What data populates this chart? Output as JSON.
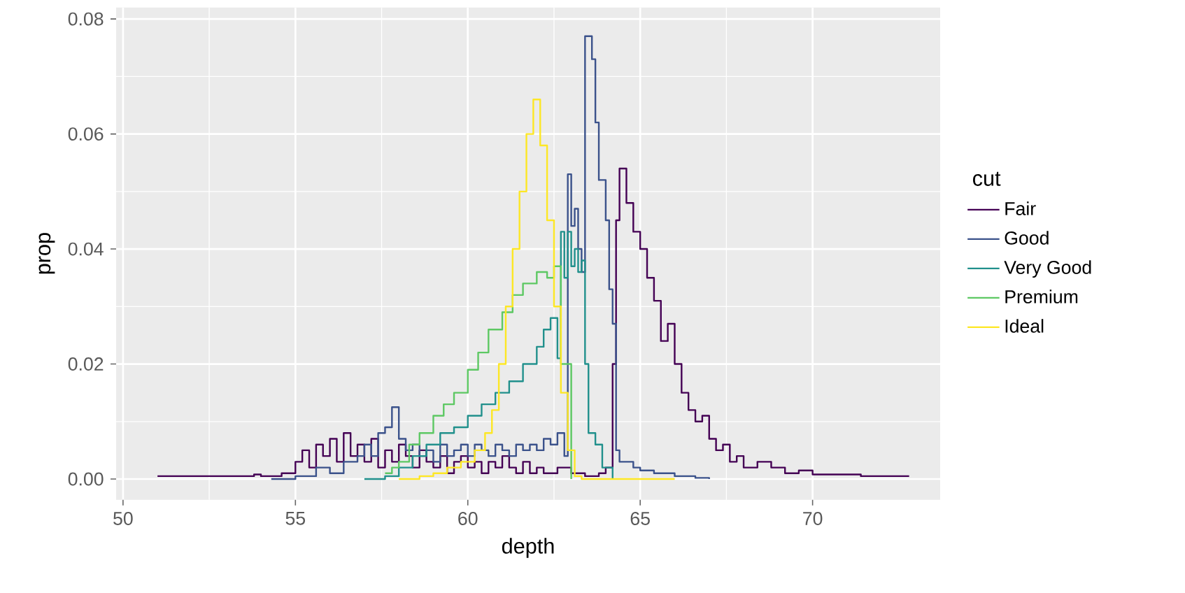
{
  "chart_data": {
    "type": "step",
    "xlabel": "depth",
    "ylabel": "prop",
    "legend_title": "cut",
    "legend": "right",
    "grid": true,
    "xlim": [
      49.8,
      73.7
    ],
    "ylim": [
      -0.0036,
      0.082
    ],
    "xticks": [
      50,
      55,
      60,
      65,
      70
    ],
    "yticks": [
      {
        "value": 0,
        "label": "0.00"
      },
      {
        "value": 0.02,
        "label": "0.02"
      },
      {
        "value": 0.04,
        "label": "0.04"
      },
      {
        "value": 0.06,
        "label": "0.06"
      },
      {
        "value": 0.08,
        "label": "0.08"
      }
    ],
    "series": [
      {
        "name": "Fair",
        "color": "#440154",
        "x": [
          51.0,
          52.0,
          53.0,
          53.8,
          54.0,
          54.6,
          55.0,
          55.2,
          55.4,
          55.6,
          55.8,
          56.0,
          56.2,
          56.4,
          56.6,
          56.8,
          57.0,
          57.2,
          57.4,
          57.6,
          57.8,
          58.0,
          58.2,
          58.4,
          58.6,
          58.8,
          59.0,
          59.2,
          59.4,
          59.6,
          59.8,
          60.0,
          60.2,
          60.4,
          60.6,
          60.8,
          61.0,
          61.2,
          61.4,
          61.6,
          61.8,
          62.0,
          62.2,
          62.6,
          63.0,
          63.4,
          63.8,
          64.0,
          64.2,
          64.3,
          64.4,
          64.6,
          64.8,
          65.0,
          65.2,
          65.4,
          65.6,
          65.8,
          66.0,
          66.2,
          66.4,
          66.6,
          66.8,
          67.0,
          67.2,
          67.4,
          67.6,
          67.8,
          68.0,
          68.4,
          68.8,
          69.2,
          69.6,
          70.0,
          70.6,
          71.4,
          72.8
        ],
        "values": [
          0.0005,
          0.0005,
          0.0005,
          0.0008,
          0.0005,
          0.001,
          0.003,
          0.005,
          0.002,
          0.006,
          0.004,
          0.007,
          0.003,
          0.008,
          0.004,
          0.006,
          0.003,
          0.007,
          0.002,
          0.005,
          0.003,
          0.006,
          0.004,
          0.002,
          0.005,
          0.003,
          0.002,
          0.004,
          0.001,
          0.003,
          0.004,
          0.002,
          0.003,
          0.001,
          0.003,
          0.002,
          0.004,
          0.002,
          0.001,
          0.003,
          0.001,
          0.002,
          0.001,
          0.002,
          0.001,
          0.0005,
          0.001,
          0.002,
          0.02,
          0.045,
          0.054,
          0.048,
          0.043,
          0.04,
          0.035,
          0.031,
          0.024,
          0.027,
          0.02,
          0.015,
          0.012,
          0.01,
          0.011,
          0.007,
          0.005,
          0.006,
          0.003,
          0.004,
          0.002,
          0.003,
          0.002,
          0.001,
          0.0015,
          0.0008,
          0.0008,
          0.0005,
          0.0005
        ]
      },
      {
        "name": "Good",
        "color": "#3b528b",
        "x": [
          54.3,
          55.0,
          55.6,
          56.0,
          56.4,
          56.8,
          57.0,
          57.2,
          57.4,
          57.6,
          57.8,
          58.0,
          58.2,
          58.4,
          58.6,
          58.8,
          59.0,
          59.2,
          59.4,
          59.6,
          59.8,
          60.0,
          60.2,
          60.4,
          60.6,
          60.8,
          61.0,
          61.2,
          61.4,
          61.6,
          61.8,
          62.0,
          62.2,
          62.4,
          62.6,
          62.8,
          62.9,
          63.0,
          63.1,
          63.2,
          63.3,
          63.4,
          63.6,
          63.7,
          63.8,
          64.0,
          64.1,
          64.2,
          64.3,
          64.4,
          64.6,
          64.8,
          65.0,
          65.4,
          66.0,
          66.6,
          67.0
        ],
        "values": [
          0,
          0.0005,
          0.002,
          0.001,
          0.003,
          0.004,
          0.006,
          0.004,
          0.008,
          0.009,
          0.0125,
          0.007,
          0.005,
          0.006,
          0.004,
          0.005,
          0.003,
          0.006,
          0.004,
          0.005,
          0.006,
          0.004,
          0.006,
          0.005,
          0.004,
          0.006,
          0.005,
          0.004,
          0.006,
          0.005,
          0.006,
          0.005,
          0.007,
          0.006,
          0.008,
          0.004,
          0.053,
          0.044,
          0.047,
          0.04,
          0.036,
          0.077,
          0.073,
          0.062,
          0.052,
          0.045,
          0.033,
          0.027,
          0.005,
          0.003,
          0.003,
          0.002,
          0.0015,
          0.001,
          0.0005,
          0.0002,
          0
        ]
      },
      {
        "name": "Very Good",
        "color": "#21908c",
        "x": [
          57.0,
          57.6,
          58.0,
          58.4,
          58.8,
          59.2,
          59.6,
          60.0,
          60.4,
          60.8,
          61.2,
          61.6,
          62.0,
          62.2,
          62.4,
          62.6,
          62.7,
          62.8,
          62.9,
          63.0,
          63.1,
          63.2,
          63.3,
          63.4,
          63.5,
          63.7,
          63.9,
          64.2
        ],
        "values": [
          0,
          0.0005,
          0.002,
          0.004,
          0.006,
          0.008,
          0.009,
          0.011,
          0.013,
          0.015,
          0.017,
          0.02,
          0.023,
          0.026,
          0.028,
          0.021,
          0.043,
          0.035,
          0.043,
          0.037,
          0.04,
          0.036,
          0.038,
          0.02,
          0.008,
          0.006,
          0.002,
          0
        ]
      },
      {
        "name": "Premium",
        "color": "#5dc863",
        "x": [
          57.6,
          57.8,
          58.0,
          58.3,
          58.6,
          59.0,
          59.3,
          59.6,
          60.0,
          60.3,
          60.6,
          61.0,
          61.3,
          61.6,
          62.0,
          62.3,
          62.5,
          62.7,
          63.0
        ],
        "values": [
          0.001,
          0.002,
          0.003,
          0.006,
          0.008,
          0.011,
          0.013,
          0.015,
          0.019,
          0.022,
          0.026,
          0.029,
          0.032,
          0.034,
          0.036,
          0.035,
          0.037,
          0.02,
          0
        ]
      },
      {
        "name": "Ideal",
        "color": "#fde725",
        "x": [
          58.0,
          58.6,
          59.0,
          59.4,
          59.8,
          60.2,
          60.5,
          60.7,
          60.9,
          61.1,
          61.3,
          61.5,
          61.7,
          61.9,
          62.1,
          62.3,
          62.5,
          62.7,
          62.9,
          63.1,
          63.3,
          66.0
        ],
        "values": [
          0,
          0.0005,
          0.001,
          0.002,
          0.003,
          0.005,
          0.008,
          0.012,
          0.02,
          0.03,
          0.04,
          0.05,
          0.06,
          0.066,
          0.058,
          0.045,
          0.03,
          0.015,
          0.005,
          0.0005,
          0,
          0
        ]
      }
    ]
  }
}
